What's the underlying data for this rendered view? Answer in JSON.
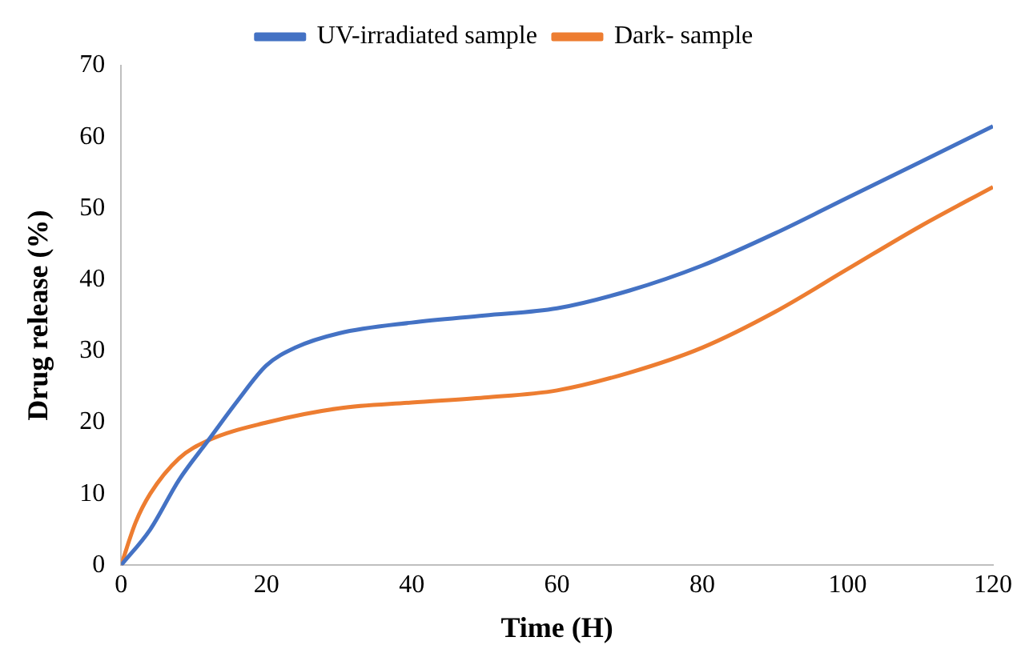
{
  "chart_data": {
    "type": "line",
    "xlabel": "Time (H)",
    "ylabel": "Drug release (%)",
    "xlim": [
      0,
      120
    ],
    "xticks": [
      0,
      20,
      40,
      60,
      80,
      100,
      120
    ],
    "ylim": [
      0,
      70
    ],
    "yticks": [
      0,
      10,
      20,
      30,
      40,
      50,
      60,
      70
    ],
    "grid": false,
    "legend": "top",
    "marker": "none",
    "line_style": "solid",
    "series": [
      {
        "name": "UV-irradiated sample",
        "color": "#4472c4",
        "x": [
          0,
          4,
          8,
          12,
          16,
          20,
          24,
          30,
          40,
          50,
          60,
          70,
          80,
          90,
          100,
          110,
          120
        ],
        "values": [
          0,
          5,
          12,
          17.5,
          23,
          28,
          30.5,
          32.5,
          34,
          35,
          36,
          38.5,
          42,
          46.5,
          51.5,
          56.5,
          61.5
        ]
      },
      {
        "name": "Dark- sample",
        "color": "#ed7d31",
        "x": [
          0,
          2,
          4,
          8,
          12,
          20,
          30,
          40,
          50,
          60,
          70,
          80,
          90,
          100,
          110,
          120
        ],
        "values": [
          0,
          6,
          10,
          15,
          17.5,
          20,
          22,
          22.8,
          23.5,
          24.5,
          27,
          30.5,
          35.5,
          41.5,
          47.5,
          53
        ]
      }
    ]
  }
}
